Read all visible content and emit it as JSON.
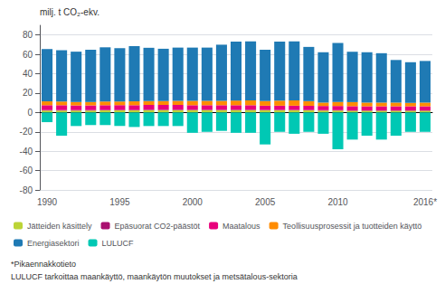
{
  "chart_data": {
    "type": "bar",
    "stacked": true,
    "ylabel": "milj. t CO₂-ekv.",
    "categories": [
      "1990",
      null,
      null,
      null,
      null,
      "1995",
      null,
      null,
      null,
      null,
      "2000",
      null,
      null,
      null,
      null,
      "2005",
      null,
      null,
      null,
      null,
      "2010",
      null,
      null,
      null,
      null,
      null,
      "2016*"
    ],
    "series": [
      {
        "name": "Jätteiden käsittely",
        "color": "#bcd436",
        "values": [
          2.0,
          2.0,
          2.0,
          2.0,
          2.2,
          2.2,
          2.2,
          2.5,
          2.5,
          2.5,
          2.5,
          2.5,
          2.5,
          2.5,
          2.5,
          2.3,
          2.3,
          2.3,
          2.2,
          2.0,
          2.0,
          1.8,
          1.8,
          1.8,
          1.8,
          1.8,
          1.8
        ]
      },
      {
        "name": "Epäsuorat CO2-päästöt",
        "color": "#aa1070",
        "values": [
          0.5,
          0.5,
          0.5,
          0.5,
          0.5,
          0.5,
          0.5,
          0.5,
          0.5,
          0.5,
          0.5,
          0.5,
          0.5,
          0.5,
          0.5,
          0.4,
          0.4,
          0.4,
          0.4,
          0.4,
          0.4,
          0.4,
          0.4,
          0.4,
          0.4,
          0.4,
          0.4
        ]
      },
      {
        "name": "Maatalous",
        "color": "#e8007c",
        "values": [
          5.0,
          5.0,
          4.8,
          4.8,
          4.8,
          4.8,
          4.8,
          4.8,
          4.8,
          4.8,
          4.5,
          4.5,
          4.5,
          4.5,
          4.5,
          4.3,
          4.3,
          4.3,
          4.3,
          4.3,
          4.3,
          4.3,
          4.2,
          4.2,
          4.2,
          4.2,
          4.2
        ]
      },
      {
        "name": "Teollisuusprosessit ja tuotteiden käyttö",
        "color": "#ff8c00",
        "values": [
          4.0,
          3.8,
          3.5,
          3.5,
          3.8,
          3.8,
          4.0,
          4.0,
          4.0,
          4.2,
          4.5,
          4.5,
          4.5,
          4.8,
          5.0,
          4.8,
          5.2,
          5.5,
          4.8,
          3.5,
          4.2,
          4.2,
          3.8,
          3.8,
          3.8,
          3.5,
          3.8
        ]
      },
      {
        "name": "Energiasektori",
        "color": "#1f7ab4",
        "values": [
          54,
          53,
          52,
          54,
          56,
          55,
          57,
          55,
          54,
          55,
          55,
          55,
          58,
          61,
          61,
          53,
          61,
          61,
          56,
          52,
          61,
          52,
          52,
          51,
          44,
          42,
          43
        ]
      },
      {
        "name": "LULUCF",
        "color": "#00c8b4",
        "values": [
          -10,
          -24,
          -14,
          -13,
          -13,
          -14,
          -15,
          -14,
          -14,
          -14,
          -21,
          -20,
          -19,
          -21,
          -21,
          -33,
          -20,
          -22,
          -20,
          -22,
          -38,
          -28,
          -24,
          -28,
          -24,
          -20,
          -20
        ]
      }
    ],
    "ylim": [
      -80,
      90
    ],
    "yticks": [
      -80,
      -60,
      -40,
      -20,
      0,
      20,
      40,
      60,
      80
    ],
    "grid": true,
    "legend": "bottom",
    "annotations": [
      "*Pikaennakkotieto",
      "LULUCF tarkoittaa maankäyttö, maankäytön muutokset ja metsätalous-sektoria"
    ]
  }
}
